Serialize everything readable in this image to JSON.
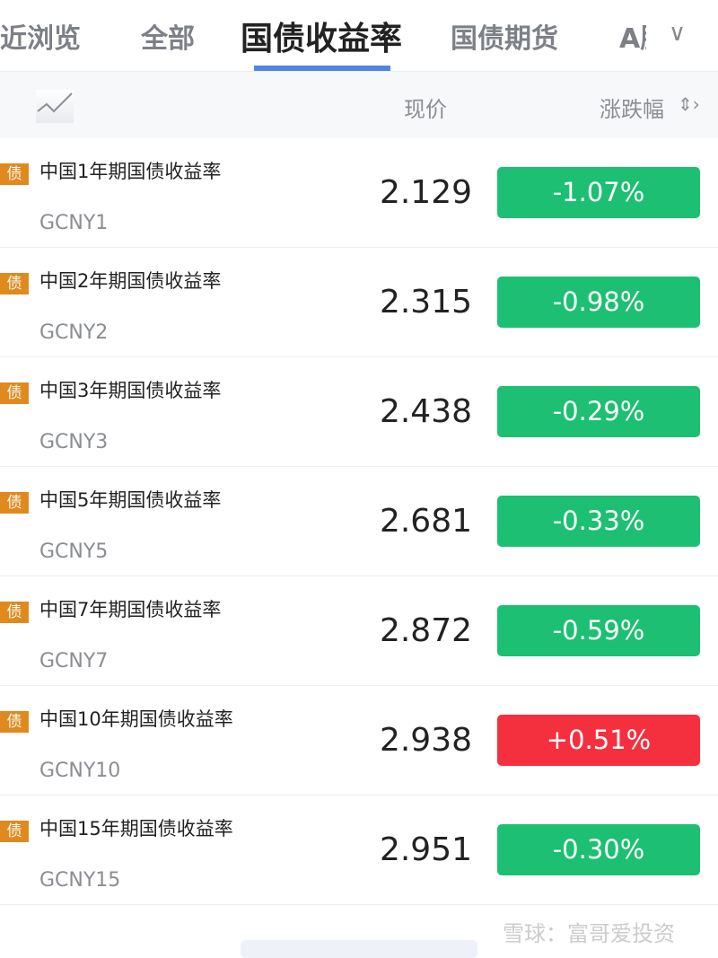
{
  "tabs": [
    "近浏览",
    "全部",
    "国债收益率",
    "国债期货",
    "A股"
  ],
  "active_tab": 2,
  "header": {
    "price": "现价",
    "change": "涨跌幅"
  },
  "badge": "债",
  "colors": {
    "down": "#1dbf73",
    "up": "#f5303e",
    "accent": "#4f86e0"
  },
  "rows": [
    {
      "name": "中国1年期国债收益率",
      "code": "GCNY1",
      "price": "2.129",
      "change": "-1.07%",
      "dir": "down"
    },
    {
      "name": "中国2年期国债收益率",
      "code": "GCNY2",
      "price": "2.315",
      "change": "-0.98%",
      "dir": "down"
    },
    {
      "name": "中国3年期国债收益率",
      "code": "GCNY3",
      "price": "2.438",
      "change": "-0.29%",
      "dir": "down"
    },
    {
      "name": "中国5年期国债收益率",
      "code": "GCNY5",
      "price": "2.681",
      "change": "-0.33%",
      "dir": "down"
    },
    {
      "name": "中国7年期国债收益率",
      "code": "GCNY7",
      "price": "2.872",
      "change": "-0.59%",
      "dir": "down"
    },
    {
      "name": "中国10年期国债收益率",
      "code": "GCNY10",
      "price": "2.938",
      "change": "+0.51%",
      "dir": "up"
    },
    {
      "name": "中国15年期国债收益率",
      "code": "GCNY15",
      "price": "2.951",
      "change": "-0.30%",
      "dir": "down"
    }
  ],
  "watermark": "雪球：富哥爱投资"
}
